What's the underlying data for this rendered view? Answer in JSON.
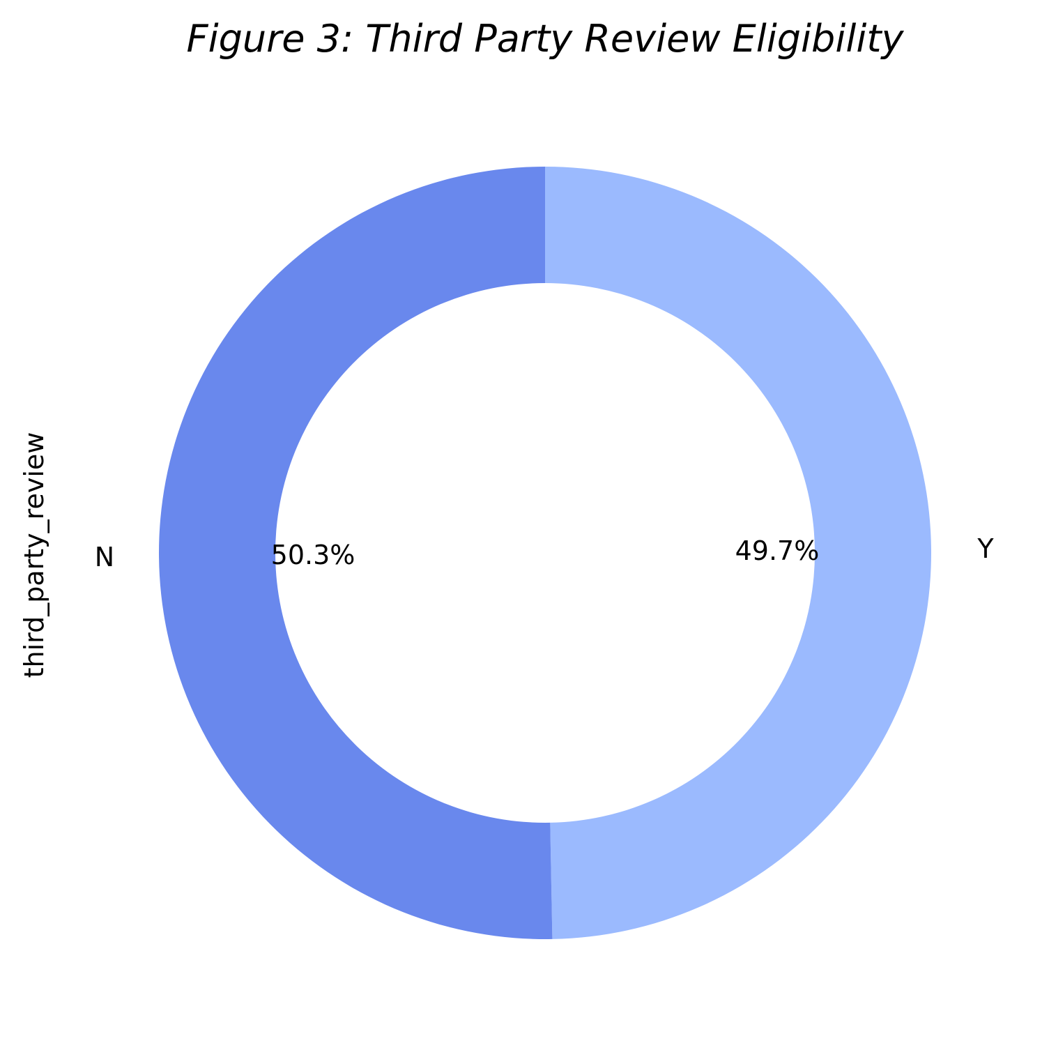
{
  "chart_data": {
    "type": "pie",
    "variant": "donut",
    "title": "Figure 3: Third Party Review Eligibility",
    "ylabel": "third_party_review",
    "categories": [
      "Y",
      "N"
    ],
    "values": [
      49.7,
      50.3
    ],
    "percent_labels": [
      "49.7%",
      "50.3%"
    ],
    "colors": [
      "#9bbafe",
      "#6988ed"
    ],
    "start_angle_deg": 90,
    "direction": "clockwise",
    "legend": "none"
  }
}
